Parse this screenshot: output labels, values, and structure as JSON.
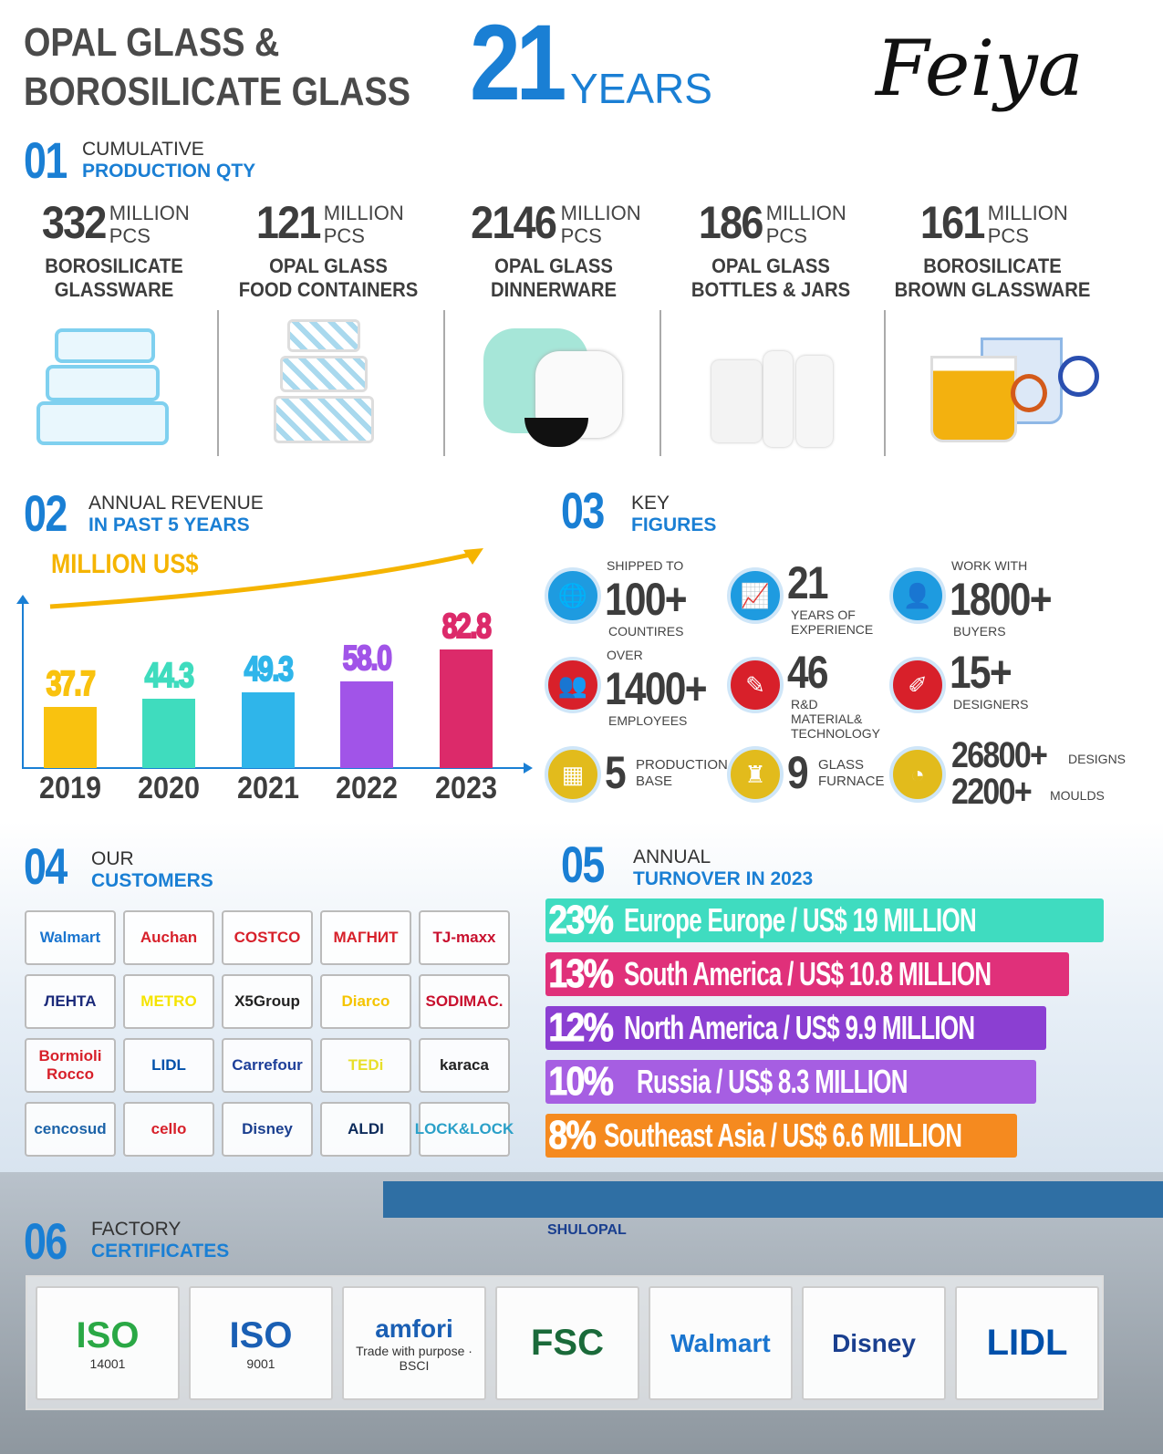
{
  "header": {
    "title_line1": "OPAL GLASS &",
    "title_line2": "BOROSILICATE GLASS",
    "years_number": "21",
    "years_label": "YEARS",
    "logo": "Feiya"
  },
  "s01": {
    "num": "01",
    "line1": "CUMULATIVE",
    "line2": "PRODUCTION QTY",
    "items": [
      {
        "value": "332",
        "unit1": "MILLION",
        "unit2": "PCS",
        "name1": "BOROSILICATE",
        "name2": "GLASSWARE"
      },
      {
        "value": "121",
        "unit1": "MILLION",
        "unit2": "PCS",
        "name1": "OPAL GLASS",
        "name2": "FOOD CONTAINERS"
      },
      {
        "value": "2146",
        "unit1": "MILLION",
        "unit2": "PCS",
        "name1": "OPAL GLASS",
        "name2": "DINNERWARE"
      },
      {
        "value": "186",
        "unit1": "MILLION",
        "unit2": "PCS",
        "name1": "OPAL GLASS",
        "name2": "BOTTLES & JARS"
      },
      {
        "value": "161",
        "unit1": "MILLION",
        "unit2": "PCS",
        "name1": "BOROSILICATE",
        "name2": "BROWN GLASSWARE"
      }
    ]
  },
  "s02": {
    "num": "02",
    "line1": "ANNUAL REVENUE",
    "line2": "IN PAST 5 YEARS",
    "unit": "MILLION US$"
  },
  "chart_data": {
    "type": "bar",
    "ylabel": "MILLION US$",
    "categories": [
      "2019",
      "2020",
      "2021",
      "2022",
      "2023"
    ],
    "values": [
      37.7,
      44.3,
      49.3,
      58.0,
      82.8
    ],
    "labels": [
      "37.7",
      "44.3",
      "49.3",
      "58.0",
      "82.8"
    ],
    "colors": [
      "#f9c20f",
      "#3fdcbe",
      "#2fb5ea",
      "#a154e8",
      "#dc2a6a"
    ]
  },
  "s03": {
    "num": "03",
    "line1": "KEY",
    "line2": "FIGURES",
    "items": [
      {
        "top": "SHIPPED TO",
        "big": "100+",
        "bottom": "COUNTIRES",
        "icon": "globe-icon",
        "color": "#1e9be0"
      },
      {
        "top": "",
        "big": "21",
        "bottom": "YEARS OF EXPERIENCE",
        "icon": "growth-chart-icon",
        "color": "#1e9be0"
      },
      {
        "top": "WORK WITH",
        "big": "1800+",
        "bottom": "BUYERS",
        "icon": "buyer-icon",
        "color": "#1e9be0"
      },
      {
        "top": "OVER",
        "big": "1400+",
        "bottom": "EMPLOYEES",
        "icon": "people-icon",
        "color": "#d8202a"
      },
      {
        "top": "",
        "big": "46",
        "bottom": "R&D MATERIAL& TECHNOLOGY",
        "icon": "research-icon",
        "color": "#d8202a"
      },
      {
        "top": "",
        "big": "15+",
        "bottom": "DESIGNERS",
        "icon": "designer-icon",
        "color": "#d8202a"
      },
      {
        "top": "",
        "big": "5",
        "bottom": "PRODUCTION BASE",
        "icon": "factory-icon",
        "color": "#e2bb1c"
      },
      {
        "top": "",
        "big": "9",
        "bottom": "GLASS FURNACE",
        "icon": "furnace-icon",
        "color": "#e2bb1c"
      },
      {
        "top": "",
        "big": "26800+",
        "bottom": "DESIGNS",
        "big2": "2200+",
        "bottom2": "MOULDS",
        "icon": "mould-icon",
        "color": "#e2bb1c"
      }
    ]
  },
  "s04": {
    "num": "04",
    "line1": "OUR",
    "line2": "CUSTOMERS",
    "customers": [
      {
        "name": "Walmart",
        "color": "#1a75cf"
      },
      {
        "name": "Auchan",
        "color": "#d7202a"
      },
      {
        "name": "COSTCO",
        "color": "#d7202a"
      },
      {
        "name": "МАГНИТ",
        "color": "#d7202a"
      },
      {
        "name": "TJ-maxx",
        "color": "#c8102e"
      },
      {
        "name": "ЛЕНТА",
        "color": "#1b2a7a"
      },
      {
        "name": "METRO",
        "color": "#f5e400"
      },
      {
        "name": "X5Group",
        "color": "#222"
      },
      {
        "name": "Diarco",
        "color": "#f5c400"
      },
      {
        "name": "SODIMAC.",
        "color": "#c8102e"
      },
      {
        "name": "Bormioli Rocco",
        "color": "#d7202a"
      },
      {
        "name": "LIDL",
        "color": "#0050aa"
      },
      {
        "name": "Carrefour",
        "color": "#1e3f99"
      },
      {
        "name": "TEDi",
        "color": "#e8df2a"
      },
      {
        "name": "karaca",
        "color": "#222"
      },
      {
        "name": "cencosud",
        "color": "#1c63a8"
      },
      {
        "name": "cello",
        "color": "#d7202a"
      },
      {
        "name": "Disney",
        "color": "#1a3f8f"
      },
      {
        "name": "ALDI",
        "color": "#0b2a5a"
      },
      {
        "name": "LOCK&LOCK",
        "color": "#2aa0c8"
      }
    ]
  },
  "s05": {
    "num": "05",
    "line1": "ANNUAL",
    "line2": "TURNOVER IN 2023",
    "rows": [
      {
        "pct": "23%",
        "text": "Europe Europe / US$ 19 MILLION",
        "color": "#3fdcc0"
      },
      {
        "pct": "13%",
        "text": "South America / US$ 10.8 MILLION",
        "color": "#e0307a"
      },
      {
        "pct": "12%",
        "text": "North America / US$ 9.9 MILLION",
        "color": "#8b3fd2"
      },
      {
        "pct": "10%",
        "text": "Russia / US$ 8.3 MILLION",
        "color": "#a65ee2"
      },
      {
        "pct": "8%",
        "text": "Southeast Asia / US$ 6.6 MILLION",
        "color": "#f58a1f"
      }
    ]
  },
  "s06": {
    "num": "06",
    "line1": "FACTORY",
    "line2": "CERTIFICATES",
    "certs": [
      {
        "main": "ISO",
        "sub": "14001",
        "color": "#2aa845"
      },
      {
        "main": "ISO",
        "sub": "9001",
        "color": "#1a5fb4"
      },
      {
        "main": "amfori",
        "sub": "Trade with purpose · BSCI",
        "color": "#1a5fb4"
      },
      {
        "main": "FSC",
        "sub": "",
        "color": "#1a6a3a"
      },
      {
        "main": "Walmart",
        "sub": "",
        "color": "#1a75cf"
      },
      {
        "main": "Disney",
        "sub": "",
        "color": "#1a3f8f"
      },
      {
        "main": "LIDL",
        "sub": "",
        "color": "#0050aa"
      }
    ],
    "building_sign": "SHULOPAL"
  }
}
